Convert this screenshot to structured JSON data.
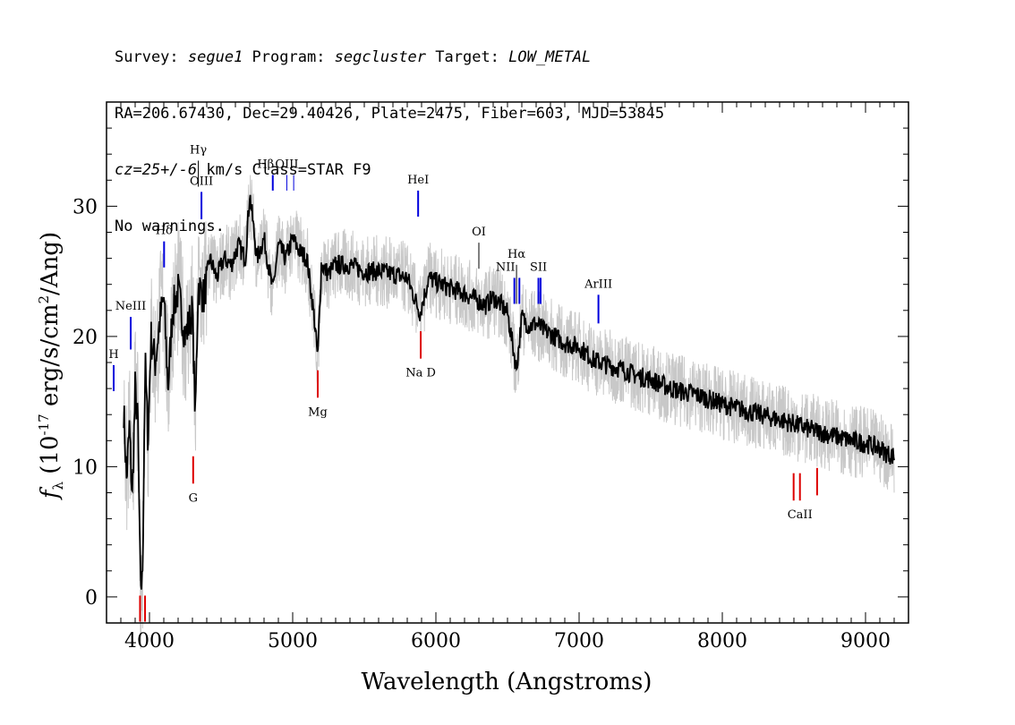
{
  "header": {
    "line1": {
      "survey_label": "Survey: ",
      "survey": "segue1",
      "program_label": " Program: ",
      "program": "segcluster",
      "target_label": " Target: ",
      "target": "LOW_METAL"
    },
    "line2": "RA=206.67430, Dec=29.40426, Plate=2475, Fiber=603, MJD=53845",
    "line3": {
      "cz": "cz=25+/-6",
      "rest": " km/s Class=STAR F9"
    },
    "line4": "No warnings."
  },
  "colors": {
    "flux": "#000000",
    "flux_raw": "#c8c8c8",
    "emission": "#0000dd",
    "absorption": "#dd0000",
    "axis": "#000000"
  },
  "chart_data": {
    "type": "line",
    "title": "",
    "xlabel": "Wavelength (Angstroms)",
    "ylabel": "f_λ (10^-17 erg/s/cm^2/Ang)",
    "ylabel_parts": {
      "f": "f",
      "lambda": "λ",
      "open": " (10",
      "exp1": "-17",
      "mid": " erg/s/cm",
      "exp2": "2",
      "close": "/Ang)"
    },
    "xlim": [
      3700,
      9300
    ],
    "ylim": [
      -2,
      38
    ],
    "xticks": [
      4000,
      5000,
      6000,
      7000,
      8000,
      9000
    ],
    "xtick_labels": [
      "4000",
      "5000",
      "6000",
      "7000",
      "8000",
      "9000"
    ],
    "yticks": [
      0,
      10,
      20,
      30
    ],
    "ytick_labels": [
      "0",
      "10",
      "20",
      "30"
    ],
    "series": [
      {
        "role": "smoothed flux",
        "x": [
          3820,
          3840,
          3860,
          3880,
          3900,
          3920,
          3935,
          3950,
          3970,
          3990,
          4010,
          4040,
          4070,
          4100,
          4130,
          4160,
          4200,
          4250,
          4300,
          4320,
          4340,
          4380,
          4420,
          4470,
          4520,
          4570,
          4620,
          4670,
          4700,
          4750,
          4800,
          4861,
          4900,
          4950,
          5000,
          5050,
          5100,
          5150,
          5175,
          5200,
          5250,
          5300,
          5400,
          5500,
          5600,
          5700,
          5800,
          5890,
          5950,
          6000,
          6100,
          6200,
          6300,
          6350,
          6400,
          6450,
          6500,
          6563,
          6600,
          6650,
          6700,
          6750,
          6800,
          6900,
          7000,
          7100,
          7200,
          7300,
          7400,
          7500,
          7600,
          7700,
          7800,
          7900,
          8000,
          8100,
          8200,
          8300,
          8400,
          8500,
          8600,
          8700,
          8800,
          8900,
          9000,
          9100,
          9150,
          9200
        ],
        "values": [
          14.5,
          9,
          13,
          7.5,
          16,
          13,
          1.5,
          0.8,
          18,
          12,
          20,
          18,
          21,
          23,
          16,
          22,
          23.5,
          20,
          22,
          13.5,
          24,
          23,
          26,
          24.5,
          26,
          25.5,
          27,
          26,
          31,
          26,
          27.5,
          23.5,
          27,
          26,
          27.5,
          26.5,
          26,
          21.5,
          18.3,
          25.5,
          24.8,
          25.5,
          25.5,
          25,
          25,
          24.8,
          24.5,
          21.8,
          24.5,
          24.2,
          23.7,
          23.3,
          22.7,
          22.4,
          23,
          22.5,
          21.8,
          17.5,
          21.5,
          20.8,
          21,
          20.5,
          20.2,
          19.5,
          19.2,
          18.2,
          17.8,
          17.5,
          17,
          16.7,
          16.2,
          15.8,
          15.6,
          15.2,
          14.8,
          14.5,
          14.2,
          13.9,
          13.6,
          13.3,
          12.9,
          12.6,
          12.3,
          12,
          11.8,
          11.4,
          11,
          10.8
        ]
      }
    ],
    "lines": [
      {
        "name": "HI",
        "label": "H",
        "x": 3750,
        "y0": 15.8,
        "y1": 17.8,
        "kind": "emission"
      },
      {
        "name": "NeIII",
        "label": "NeIII",
        "x": 3869,
        "y0": 19,
        "y1": 21.5,
        "kind": "emission"
      },
      {
        "name": "Hdelta",
        "label": "Hδ",
        "x": 4102,
        "y0": 25.3,
        "y1": 27.3,
        "kind": "emission"
      },
      {
        "name": "Hgamma",
        "label": "Hγ",
        "x": 4341,
        "y0": 31.5,
        "y1": 33.5,
        "kind": "emission-thin"
      },
      {
        "name": "OIII-4363",
        "label": "OIII",
        "x": 4363,
        "y0": 29,
        "y1": 31.1,
        "kind": "emission"
      },
      {
        "name": "Hbeta",
        "label": "Hβ",
        "x": 4861,
        "y0": 31.2,
        "y1": 32.4,
        "kind": "emission"
      },
      {
        "name": "OIII-4959",
        "label": "OIII",
        "x": 4959,
        "y0": 31.2,
        "y1": 32.4,
        "kind": "emission-thin"
      },
      {
        "name": "OIII-5007",
        "label": "OIII",
        "x": 5007,
        "y0": 31.2,
        "y1": 32.4,
        "kind": "emission-thin"
      },
      {
        "name": "HeI",
        "label": "HeI",
        "x": 5876,
        "y0": 29.2,
        "y1": 31.2,
        "kind": "emission"
      },
      {
        "name": "OI",
        "label": "OI",
        "x": 6300,
        "y0": 25.2,
        "y1": 27.2,
        "kind": "emission-thin"
      },
      {
        "name": "NII-6548",
        "label": "NII",
        "x": 6548,
        "y0": 22.5,
        "y1": 24.5,
        "kind": "emission"
      },
      {
        "name": "Halpha",
        "label": "Hα",
        "x": 6563,
        "y0": 22.5,
        "y1": 25.5,
        "kind": "emission-thin"
      },
      {
        "name": "NII-6583",
        "label": "NII",
        "x": 6583,
        "y0": 22.5,
        "y1": 24.5,
        "kind": "emission"
      },
      {
        "name": "SII-6716",
        "label": "SII",
        "x": 6716,
        "y0": 22.5,
        "y1": 24.5,
        "kind": "emission"
      },
      {
        "name": "SII-6731",
        "label": "SII",
        "x": 6731,
        "y0": 22.5,
        "y1": 24.5,
        "kind": "emission"
      },
      {
        "name": "ArIII",
        "label": "ArIII",
        "x": 7135,
        "y0": 21,
        "y1": 23.2,
        "kind": "emission"
      },
      {
        "name": "CaII-K",
        "label": "",
        "x": 3934,
        "y0": -1.9,
        "y1": 0.1,
        "kind": "absorption"
      },
      {
        "name": "CaII-H",
        "label": "",
        "x": 3969,
        "y0": -1.9,
        "y1": 0.1,
        "kind": "absorption"
      },
      {
        "name": "G",
        "label": "G",
        "x": 4305,
        "y0": 8.7,
        "y1": 10.8,
        "kind": "absorption"
      },
      {
        "name": "Mg",
        "label": "Mg",
        "x": 5175,
        "y0": 15.3,
        "y1": 17.4,
        "kind": "absorption"
      },
      {
        "name": "NaD",
        "label": "Na D",
        "x": 5894,
        "y0": 18.3,
        "y1": 20.4,
        "kind": "absorption"
      },
      {
        "name": "CaII-8498",
        "label": "",
        "x": 8498,
        "y0": 7.4,
        "y1": 9.5,
        "kind": "absorption"
      },
      {
        "name": "CaII-8542",
        "label": "CaII",
        "x": 8542,
        "y0": 7.4,
        "y1": 9.5,
        "kind": "absorption"
      },
      {
        "name": "CaII-8662",
        "label": "",
        "x": 8662,
        "y0": 7.8,
        "y1": 9.9,
        "kind": "absorption"
      }
    ]
  }
}
